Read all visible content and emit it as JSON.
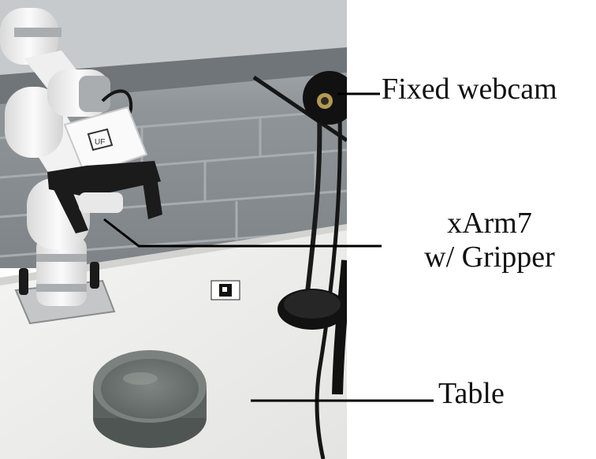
{
  "figure": {
    "labels": {
      "webcam": "Fixed webcam",
      "arm_line1": "xArm7",
      "arm_line2": "w/ Gripper",
      "table": "Table"
    },
    "marker_text": "UF",
    "colors": {
      "wall": "#8d9397",
      "wall_mortar": "#a3a8ab",
      "table_top": "#f2f2f0",
      "robot_body": "#f4f4f4",
      "robot_ring": "#a9adb0",
      "gripper": "#1b1b1b",
      "bowl": "#6f7673",
      "webcam": "#141414",
      "leader_line": "#000000"
    }
  }
}
